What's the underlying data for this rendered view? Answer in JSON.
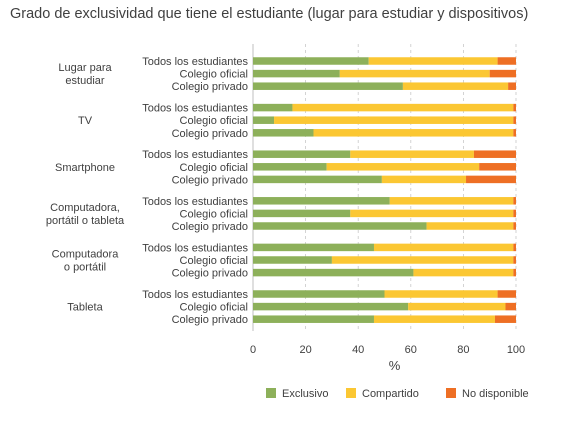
{
  "chart_data": {
    "type": "bar",
    "orientation": "horizontal",
    "stacked": true,
    "title": "Grado de exclusividad que tiene el estudiante (lugar para estudiar y dispositivos)",
    "xlabel": "%",
    "xlim": [
      0,
      100
    ],
    "xticks": [
      0,
      20,
      40,
      60,
      80,
      100
    ],
    "grid": "vertical dashed",
    "legend_position": "bottom-right",
    "series": [
      {
        "name": "Exclusivo",
        "color": "#8db05a"
      },
      {
        "name": "Compartido",
        "color": "#fbc733"
      },
      {
        "name": "No disponible",
        "color": "#ee6f24"
      }
    ],
    "groups": [
      {
        "label": [
          "Lugar para",
          "estudiar"
        ],
        "rows": [
          {
            "label": "Todos los estudiantes",
            "values": [
              44,
              49,
              7
            ]
          },
          {
            "label": "Colegio oficial",
            "values": [
              33,
              57,
              10
            ]
          },
          {
            "label": "Colegio privado",
            "values": [
              57,
              40,
              3
            ]
          }
        ]
      },
      {
        "label": [
          "TV"
        ],
        "rows": [
          {
            "label": "Todos los estudiantes",
            "values": [
              15,
              84,
              1
            ]
          },
          {
            "label": "Colegio oficial",
            "values": [
              8,
              91,
              1
            ]
          },
          {
            "label": "Colegio privado",
            "values": [
              23,
              76,
              1
            ]
          }
        ]
      },
      {
        "label": [
          "Smartphone"
        ],
        "rows": [
          {
            "label": "Todos los estudiantes",
            "values": [
              37,
              47,
              16
            ]
          },
          {
            "label": "Colegio oficial",
            "values": [
              28,
              58,
              14
            ]
          },
          {
            "label": "Colegio privado",
            "values": [
              49,
              32,
              19
            ]
          }
        ]
      },
      {
        "label": [
          "Computadora,",
          "portátil o tableta"
        ],
        "rows": [
          {
            "label": "Todos los estudiantes",
            "values": [
              52,
              47,
              1
            ]
          },
          {
            "label": "Colegio oficial",
            "values": [
              37,
              62,
              1
            ]
          },
          {
            "label": "Colegio privado",
            "values": [
              66,
              33,
              1
            ]
          }
        ]
      },
      {
        "label": [
          "Computadora",
          "o portátil"
        ],
        "rows": [
          {
            "label": "Todos los estudiantes",
            "values": [
              46,
              53,
              1
            ]
          },
          {
            "label": "Colegio oficial",
            "values": [
              30,
              69,
              1
            ]
          },
          {
            "label": "Colegio privado",
            "values": [
              61,
              38,
              1
            ]
          }
        ]
      },
      {
        "label": [
          "Tableta"
        ],
        "rows": [
          {
            "label": "Todos los estudiantes",
            "values": [
              50,
              43,
              7
            ]
          },
          {
            "label": "Colegio oficial",
            "values": [
              59,
              37,
              4
            ]
          },
          {
            "label": "Colegio privado",
            "values": [
              46,
              46,
              8
            ]
          }
        ]
      }
    ]
  }
}
